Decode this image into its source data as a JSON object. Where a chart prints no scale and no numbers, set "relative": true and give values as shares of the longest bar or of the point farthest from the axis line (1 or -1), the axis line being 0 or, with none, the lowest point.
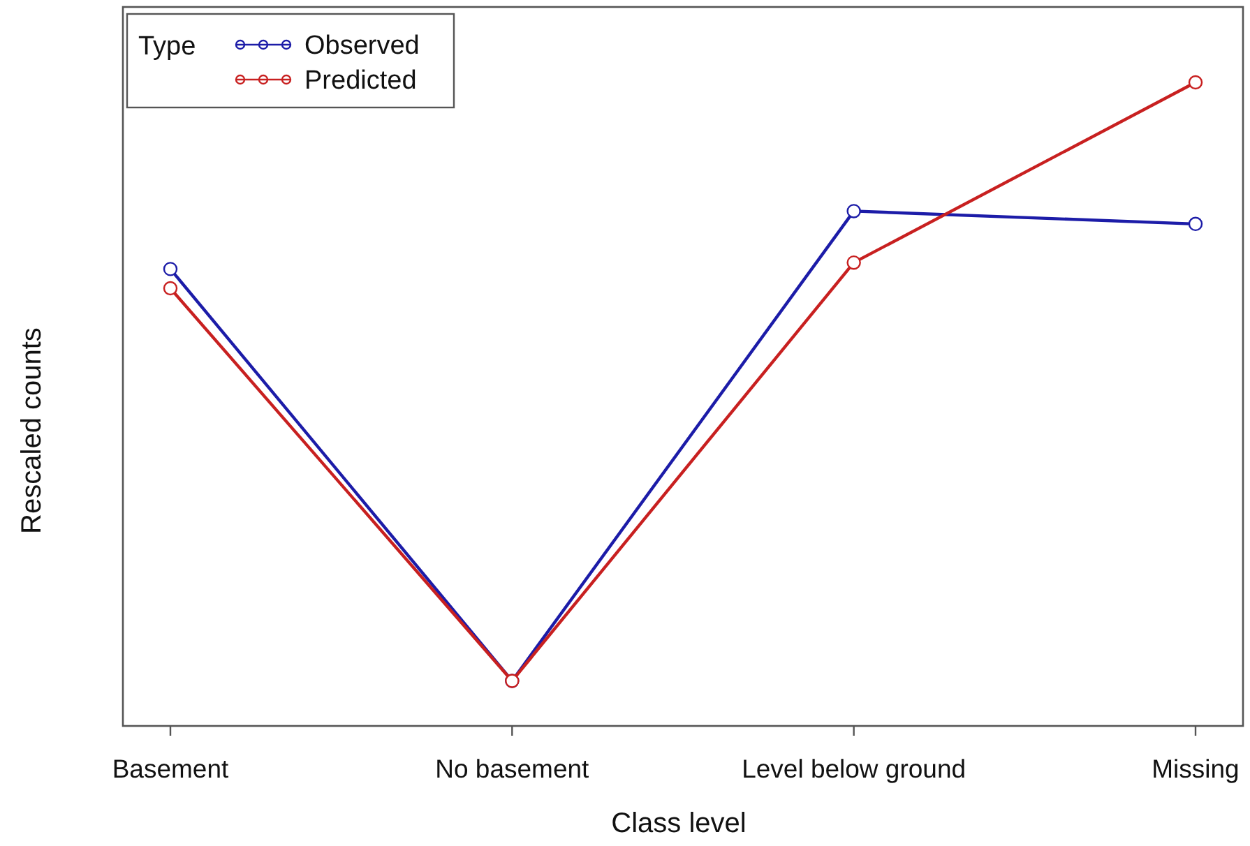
{
  "chart_data": {
    "type": "line",
    "xlabel": "Class level",
    "ylabel": "Rescaled counts",
    "legend_title": "Type",
    "categories": [
      "Basement",
      "No basement",
      "Level below ground",
      "Missing"
    ],
    "relative": true,
    "series": [
      {
        "name": "Observed",
        "color": "#1c1ca8",
        "values": [
          0.71,
          0.07,
          0.8,
          0.78
        ]
      },
      {
        "name": "Predicted",
        "color": "#c82020",
        "values": [
          0.68,
          0.07,
          0.72,
          1
        ]
      }
    ],
    "legend": "top left",
    "marker": "circle"
  }
}
